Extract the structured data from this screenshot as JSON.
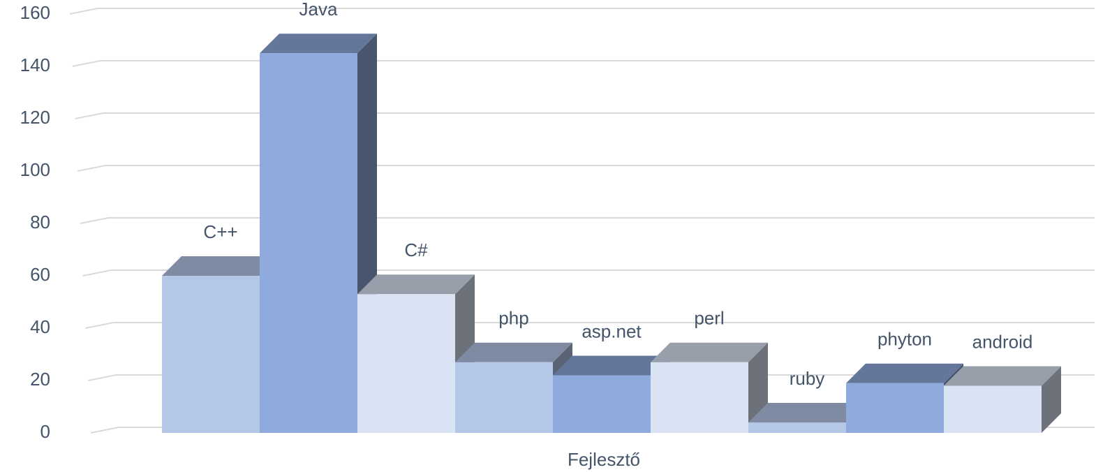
{
  "chart_data": {
    "type": "bar3d",
    "categories": [
      "Fejlesztő"
    ],
    "series": [
      {
        "name": "C++",
        "color": "#b4c7e7",
        "values": [
          60
        ]
      },
      {
        "name": "Java",
        "color": "#8faadc",
        "values": [
          145
        ]
      },
      {
        "name": "C#",
        "color": "#dae3f3",
        "values": [
          53
        ]
      },
      {
        "name": "php",
        "color": "#b4c7e7",
        "values": [
          27
        ]
      },
      {
        "name": "asp.net",
        "color": "#8faadc",
        "values": [
          22
        ]
      },
      {
        "name": "perl",
        "color": "#dae3f3",
        "values": [
          27
        ]
      },
      {
        "name": "ruby",
        "color": "#b4c7e7",
        "values": [
          4
        ]
      },
      {
        "name": "phyton",
        "color": "#8faadc",
        "values": [
          19
        ]
      },
      {
        "name": "android",
        "color": "#dae3f3",
        "values": [
          18
        ]
      }
    ],
    "ylim": [
      0,
      160
    ],
    "yticks": [
      0,
      20,
      40,
      60,
      80,
      100,
      120,
      140,
      160
    ],
    "grid": true
  }
}
